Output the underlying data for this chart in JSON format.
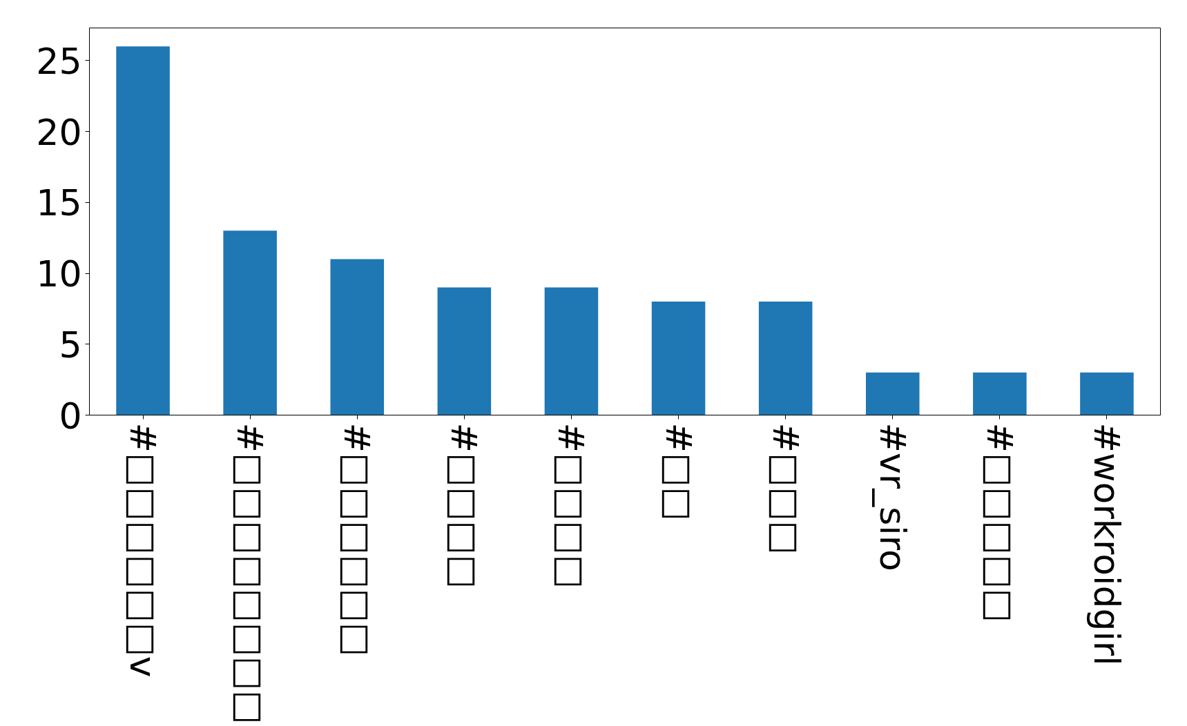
{
  "chart_data": {
    "type": "bar",
    "categories": [
      "#□□□□□□v",
      "#□□□□□□□□",
      "#□□□□□□",
      "#□□□□",
      "#□□□□",
      "#□□",
      "#□□□",
      "#vr_siro",
      "#□□□□□",
      "#workroidgirl"
    ],
    "values": [
      26,
      13,
      11,
      9,
      9,
      8,
      8,
      3,
      3,
      3
    ],
    "color": "#1f77b4",
    "ylim": [
      0,
      27.3
    ],
    "yticks": [
      0,
      5,
      10,
      15,
      20,
      25
    ],
    "grid": false
  }
}
